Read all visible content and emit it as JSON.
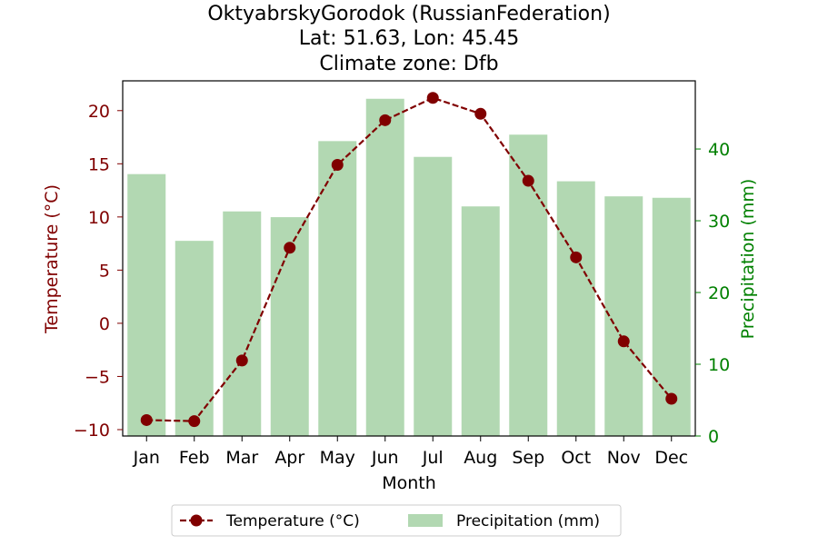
{
  "chart_data": {
    "type": "bar+line",
    "title_lines": [
      "OktyabrskyGorodok (RussianFederation)",
      "Lat: 51.63, Lon: 45.45",
      "Climate zone: Dfb"
    ],
    "xlabel": "Month",
    "categories": [
      "Jan",
      "Feb",
      "Mar",
      "Apr",
      "May",
      "Jun",
      "Jul",
      "Aug",
      "Sep",
      "Oct",
      "Nov",
      "Dec"
    ],
    "temperature": {
      "name": "Temperature (°C)",
      "axis_label": "Temperature (°C)",
      "values": [
        -9.1,
        -9.2,
        -3.5,
        7.1,
        14.9,
        19.1,
        21.2,
        19.7,
        13.4,
        6.2,
        -1.7,
        -7.1
      ],
      "ylim": [
        -10.6,
        22.8
      ],
      "ticks": [
        -10,
        -5,
        0,
        5,
        10,
        15,
        20
      ],
      "color": "#800000"
    },
    "precipitation": {
      "name": "Precipitation (mm)",
      "axis_label": "Precipitation (mm)",
      "values": [
        36.5,
        27.2,
        31.3,
        30.5,
        41.1,
        47.0,
        38.9,
        32.0,
        42.0,
        35.5,
        33.4,
        33.2
      ],
      "ylim": [
        0,
        49.5
      ],
      "ticks": [
        0,
        10,
        20,
        30,
        40
      ],
      "color": "#b2d8b2",
      "axis_color": "#008000"
    },
    "legend": {
      "position": "bottom-center",
      "entries": [
        "Temperature (°C)",
        "Precipitation (mm)"
      ]
    }
  }
}
